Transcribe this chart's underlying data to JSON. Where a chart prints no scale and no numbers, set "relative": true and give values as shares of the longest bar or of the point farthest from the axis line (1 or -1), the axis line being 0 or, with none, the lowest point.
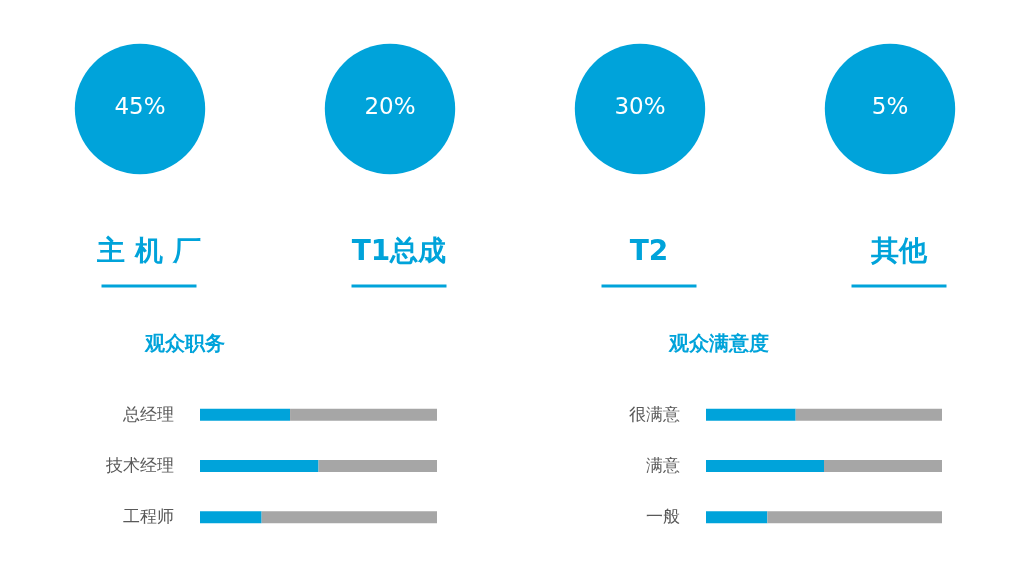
{
  "chart_data": [
    {
      "type": "other",
      "categories": [
        "主 机 厂",
        "T1总成",
        "T2",
        "其他"
      ],
      "values": [
        45,
        20,
        30,
        5
      ],
      "value_labels": [
        "45%",
        "20%",
        "30%",
        "5%"
      ],
      "color": "#00a3da"
    },
    {
      "type": "bar",
      "title": "观众职务",
      "orientation": "horizontal",
      "stacked": true,
      "relative": true,
      "categories": [
        "总经理",
        "技术经理",
        "工程师"
      ],
      "series": [
        {
          "color": "#00a3da",
          "values": [
            0.38,
            0.5,
            0.26
          ]
        },
        {
          "color": "#a6a6a6",
          "values": [
            0.62,
            0.5,
            0.74
          ]
        }
      ]
    },
    {
      "type": "bar",
      "title": "观众满意度",
      "orientation": "horizontal",
      "stacked": true,
      "relative": true,
      "categories": [
        "很满意",
        "满意",
        "一般"
      ],
      "series": [
        {
          "color": "#00a3da",
          "values": [
            0.38,
            0.5,
            0.26
          ]
        },
        {
          "color": "#a6a6a6",
          "values": [
            0.62,
            0.5,
            0.74
          ]
        }
      ]
    }
  ]
}
